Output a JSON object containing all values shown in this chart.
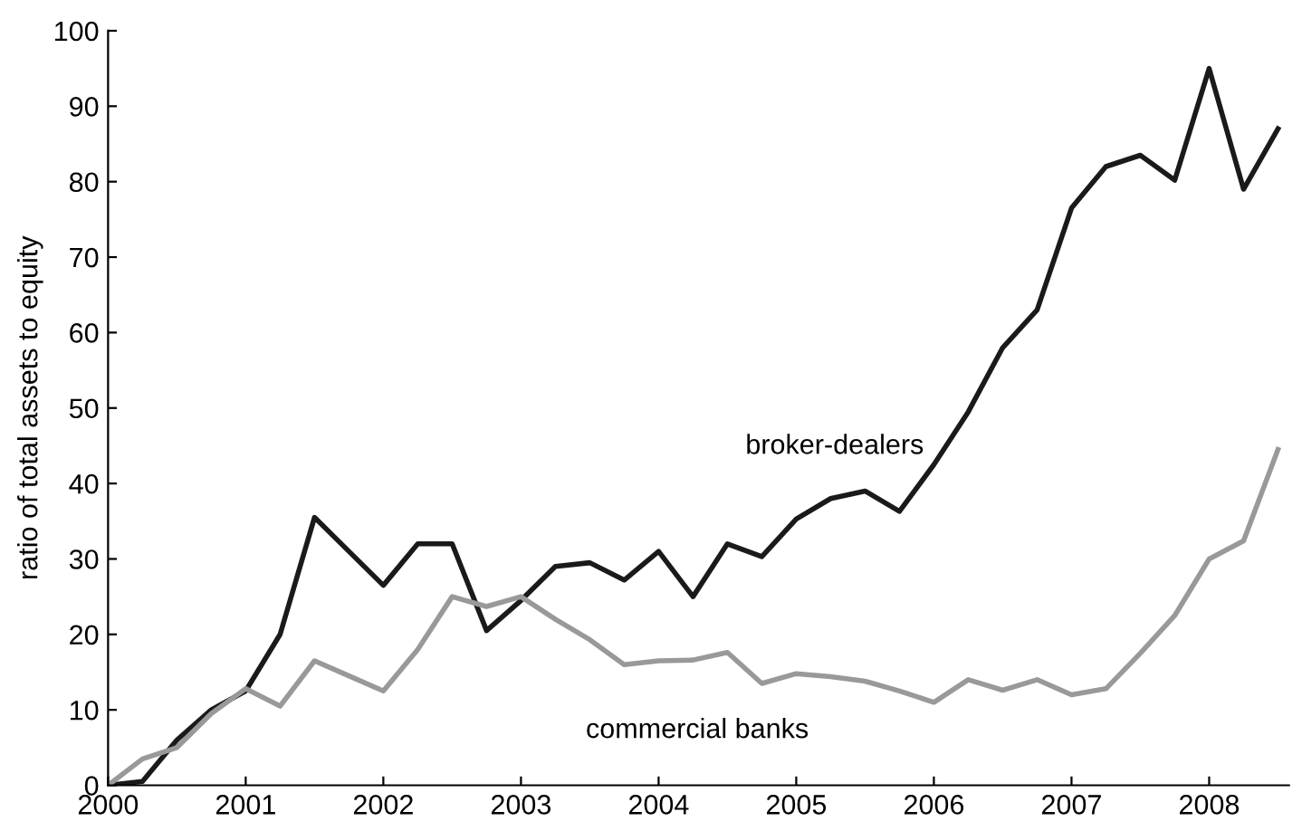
{
  "chart_data": {
    "type": "line",
    "ylabel": "ratio of total assets to equity",
    "x": [
      2000,
      2000.25,
      2000.5,
      2000.75,
      2001,
      2001.25,
      2001.5,
      2001.75,
      2002,
      2002.25,
      2002.5,
      2002.75,
      2003,
      2003.25,
      2003.5,
      2003.75,
      2004,
      2004.25,
      2004.5,
      2004.75,
      2005,
      2005.25,
      2005.5,
      2005.75,
      2006,
      2006.25,
      2006.5,
      2006.75,
      2007,
      2007.25,
      2007.5,
      2007.75,
      2008,
      2008.25,
      2008.5
    ],
    "series": [
      {
        "name": "broker-dealers",
        "color": "#1a1a1a",
        "values": [
          0,
          0.5,
          6,
          10,
          12.5,
          20,
          35.5,
          31,
          26.5,
          32,
          32,
          20.5,
          24.5,
          29,
          29.5,
          27.2,
          31,
          25,
          32,
          30.3,
          35.3,
          38,
          39,
          36.3,
          42.5,
          49.5,
          58,
          63,
          76.5,
          82,
          83.5,
          80.2,
          95,
          79,
          87
        ]
      },
      {
        "name": "commercial banks",
        "color": "#999999",
        "values": [
          0,
          3.5,
          5,
          9.5,
          12.8,
          10.5,
          16.5,
          14.5,
          12.5,
          18,
          25,
          23.7,
          25,
          22,
          19.3,
          16,
          16.5,
          16.6,
          17.6,
          13.5,
          14.8,
          14.4,
          13.8,
          12.5,
          11,
          14,
          12.6,
          14,
          12,
          12.8,
          17.5,
          22.5,
          30,
          32.4,
          44.5
        ]
      }
    ],
    "xlim": [
      2000,
      2008.58
    ],
    "xticks": [
      2000,
      2001,
      2002,
      2003,
      2004,
      2005,
      2006,
      2007,
      2008
    ],
    "ylim": [
      0,
      100
    ],
    "yticks": [
      0,
      10,
      20,
      30,
      40,
      50,
      60,
      70,
      80,
      90,
      100
    ],
    "grid": false,
    "legend": false,
    "marker": "none",
    "line_style": "solid"
  }
}
